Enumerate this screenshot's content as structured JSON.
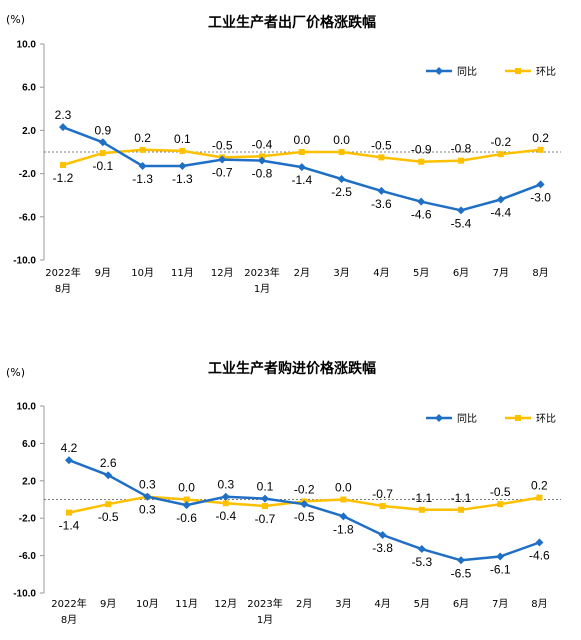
{
  "chart_data": [
    {
      "type": "line",
      "title": "工业生产者出厂价格涨跌幅",
      "unit_label": "(%)",
      "categories": [
        "2022年",
        "9月",
        "10月",
        "11月",
        "12月",
        "2023年",
        "2月",
        "3月",
        "4月",
        "5月",
        "6月",
        "7月",
        "8月"
      ],
      "categories_sub": [
        "8月",
        "",
        "",
        "",
        "",
        "1月",
        "",
        "",
        "",
        "",
        "",
        "",
        ""
      ],
      "y_ticks": [
        "10.0",
        "6.0",
        "2.0",
        "-2.0",
        "-6.0",
        "-10.0"
      ],
      "ylim": [
        -10,
        10
      ],
      "legend_position": "top-right",
      "series": [
        {
          "name": "同比",
          "color": "#1f6fc5",
          "marker": "diamond",
          "values": [
            2.3,
            0.9,
            -1.3,
            -1.3,
            -0.7,
            -0.8,
            -1.4,
            -2.5,
            -3.6,
            -4.6,
            -5.4,
            -4.4,
            -3.0
          ],
          "labels": [
            "2.3",
            "0.9",
            "-1.3",
            "-1.3",
            "-0.7",
            "-0.8",
            "-1.4",
            "-2.5",
            "-3.6",
            "-4.6",
            "-5.4",
            "-4.4",
            "-3.0"
          ],
          "label_position": [
            "above",
            "above",
            "below",
            "below",
            "below",
            "below",
            "below",
            "below",
            "below",
            "below",
            "below",
            "below",
            "below"
          ]
        },
        {
          "name": "环比",
          "color": "#ffc000",
          "marker": "square",
          "values": [
            -1.2,
            -0.1,
            0.2,
            0.1,
            -0.5,
            -0.4,
            0.0,
            0.0,
            -0.5,
            -0.9,
            -0.8,
            -0.2,
            0.2
          ],
          "labels": [
            "-1.2",
            "-0.1",
            "0.2",
            "0.1",
            "-0.5",
            "-0.4",
            "0.0",
            "0.0",
            "-0.5",
            "-0.9",
            "-0.8",
            "-0.2",
            "0.2"
          ],
          "label_position": [
            "below",
            "below",
            "above",
            "above",
            "above",
            "above",
            "above",
            "above",
            "above",
            "above",
            "above",
            "above",
            "above"
          ]
        }
      ]
    },
    {
      "type": "line",
      "title": "工业生产者购进价格涨跌幅",
      "unit_label": "(%)",
      "categories": [
        "2022年",
        "9月",
        "10月",
        "11月",
        "12月",
        "2023年",
        "2月",
        "3月",
        "4月",
        "5月",
        "6月",
        "7月",
        "8月"
      ],
      "categories_sub": [
        "8月",
        "",
        "",
        "",
        "",
        "1月",
        "",
        "",
        "",
        "",
        "",
        "",
        ""
      ],
      "y_ticks": [
        "10.0",
        "6.0",
        "2.0",
        "-2.0",
        "-6.0",
        "-10.0"
      ],
      "ylim": [
        -10,
        10
      ],
      "legend_position": "top-right",
      "series": [
        {
          "name": "同比",
          "color": "#1f6fc5",
          "marker": "diamond",
          "values": [
            4.2,
            2.6,
            0.3,
            -0.6,
            0.3,
            0.1,
            -0.5,
            -1.8,
            -3.8,
            -5.3,
            -6.5,
            -6.1,
            -4.6
          ],
          "labels": [
            "4.2",
            "2.6",
            "0.3",
            "-0.6",
            "0.3",
            "0.1",
            "-0.5",
            "-1.8",
            "-3.8",
            "-5.3",
            "-6.5",
            "-6.1",
            "-4.6"
          ],
          "label_position": [
            "above",
            "above",
            "below",
            "below",
            "above",
            "above",
            "below",
            "below",
            "below",
            "below",
            "below",
            "below",
            "below"
          ]
        },
        {
          "name": "环比",
          "color": "#ffc000",
          "marker": "square",
          "values": [
            -1.4,
            -0.5,
            0.3,
            0.0,
            -0.4,
            -0.7,
            -0.2,
            0.0,
            -0.7,
            -1.1,
            -1.1,
            -0.5,
            0.2
          ],
          "labels": [
            "-1.4",
            "-0.5",
            "0.3",
            "0.0",
            "-0.4",
            "-0.7",
            "-0.2",
            "0.0",
            "-0.7",
            "-1.1",
            "-1.1",
            "-0.5",
            "0.2"
          ],
          "label_position": [
            "below",
            "below",
            "above",
            "above",
            "below",
            "below",
            "above",
            "above",
            "above",
            "above",
            "above",
            "above",
            "above"
          ]
        }
      ]
    }
  ]
}
